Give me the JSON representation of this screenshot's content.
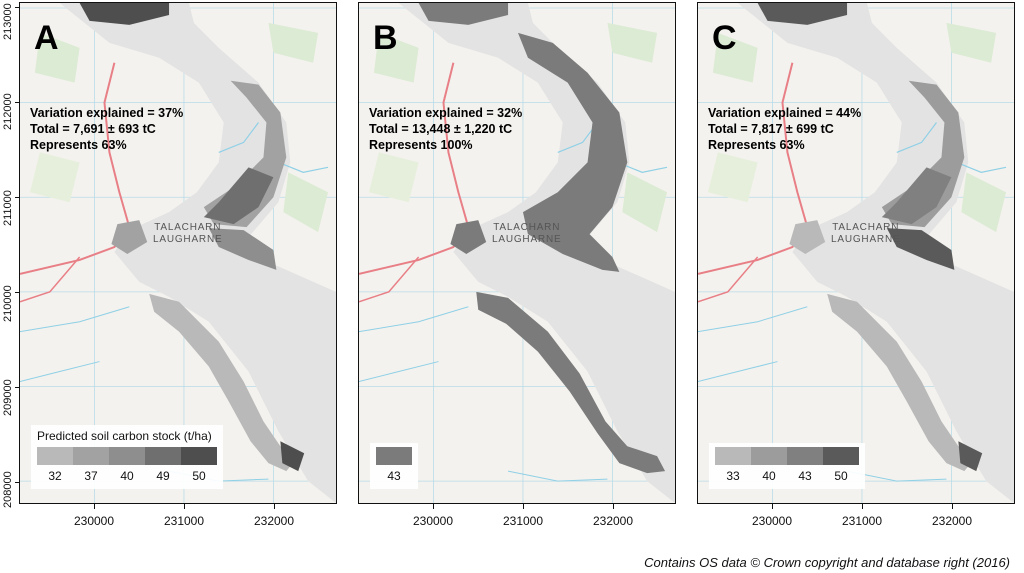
{
  "panels": [
    {
      "letter": "A",
      "variation": "Variation explained = 37%",
      "total": "Total = 7,691 ± 693 tC",
      "represents": "Represents 63%",
      "legend_title": "Predicted soil carbon stock (t/ha)",
      "legend_values": [
        "32",
        "37",
        "40",
        "49",
        "50"
      ],
      "legend_colors": [
        "#b9b9b9",
        "#a2a2a2",
        "#8e8e8e",
        "#6f6f6f",
        "#4e4e4e"
      ]
    },
    {
      "letter": "B",
      "variation": "Variation explained = 32%",
      "total": "Total = 13,448 ± 1,220 tC",
      "represents": "Represents 100%",
      "legend_title": "",
      "legend_values": [
        "43"
      ],
      "legend_colors": [
        "#7b7b7b"
      ]
    },
    {
      "letter": "C",
      "variation": "Variation explained = 44%",
      "total": "Total = 7,817 ± 699 tC",
      "represents": "Represents 63%",
      "legend_title": "",
      "legend_values": [
        "33",
        "40",
        "43",
        "50"
      ],
      "legend_colors": [
        "#b9b9b9",
        "#9c9c9c",
        "#808080",
        "#5a5a5a"
      ]
    }
  ],
  "map_labels": {
    "place_1": "TALACHARN",
    "place_2": "LAUGHARNE"
  },
  "y_ticks": [
    "213000",
    "212000",
    "211000",
    "210000",
    "209000",
    "208000"
  ],
  "x_ticks": [
    "230000",
    "231000",
    "232000"
  ],
  "credit": "Contains OS data © Crown copyright and database right (2016)",
  "colors": {
    "water": "#e3e3e3",
    "land": "#f4f2ee",
    "road": "#e87f86",
    "river": "#8fd0e6",
    "grid": "#b8dbe8"
  }
}
